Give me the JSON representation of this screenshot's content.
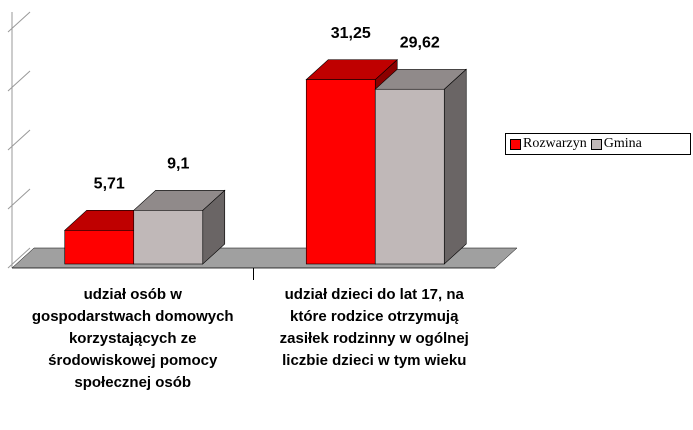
{
  "chart_data": {
    "type": "bar3d",
    "categories": [
      "udział osób w gospodarstwach domowych korzystających ze środowiskowej pomocy społecznej osób",
      "udział dzieci do lat 17, na które rodzice otrzymują zasiłek rodzinny w ogólnej liczbie dzieci w tym wieku"
    ],
    "series": [
      {
        "name": "Rozwarzyn",
        "color": "#ff0000",
        "values": [
          5.71,
          31.25
        ],
        "value_labels": [
          "5,71",
          "31,25"
        ]
      },
      {
        "name": "Gmina",
        "color": "#c0b8b8",
        "values": [
          9.1,
          29.62
        ],
        "value_labels": [
          "9,1",
          "29,62"
        ]
      }
    ],
    "ylim": [
      0,
      40
    ],
    "yticks": [
      0,
      10,
      20,
      30,
      40
    ],
    "legend": "right"
  }
}
